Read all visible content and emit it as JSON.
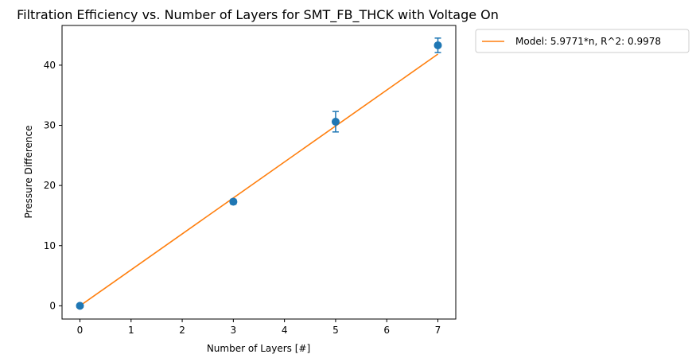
{
  "chart_data": {
    "type": "scatter",
    "title": "Filtration Efficiency vs. Number of Layers for SMT_FB_THCK with Voltage On",
    "xlabel": "Number of Layers [#]",
    "ylabel": "Pressure Difference",
    "xlim": [
      -0.35,
      7.35
    ],
    "ylim": [
      -2.2,
      46.6
    ],
    "xticks": [
      0,
      1,
      2,
      3,
      4,
      5,
      6,
      7
    ],
    "yticks": [
      0,
      10,
      20,
      30,
      40
    ],
    "grid": false,
    "legend_position": "outside-top-right",
    "series": [
      {
        "kind": "errorbar",
        "color": "#1f77b4",
        "points": [
          {
            "x": 0,
            "y": 0.0,
            "err": 0.0
          },
          {
            "x": 3,
            "y": 17.3,
            "err": 0.4
          },
          {
            "x": 5,
            "y": 30.6,
            "err": 1.7
          },
          {
            "x": 7,
            "y": 43.3,
            "err": 1.2
          }
        ]
      },
      {
        "kind": "line",
        "name": "Model: 5.9771*n, R^2: 0.9978",
        "color": "#ff7f0e",
        "slope": 5.9771,
        "x": [
          0,
          7
        ]
      }
    ]
  }
}
